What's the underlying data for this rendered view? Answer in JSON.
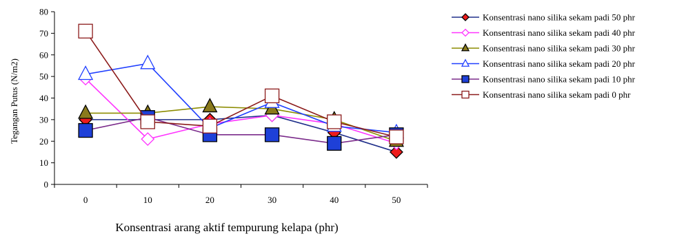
{
  "chart_data": {
    "type": "line",
    "xlabel": "Konsentrasi arang aktif tempurung kelapa (phr)",
    "ylabel": "Tegangan Putus (N/m2)",
    "x": [
      0,
      10,
      20,
      30,
      40,
      50
    ],
    "ylim": [
      0,
      80
    ],
    "yticks": [
      0,
      10,
      20,
      30,
      40,
      50,
      60,
      70,
      80
    ],
    "grid": false,
    "legend": "right",
    "series": [
      {
        "name": "Konsentrasi nano silika sekam padi 50 phr",
        "color": "#1f2f8a",
        "marker": "diamond",
        "marker_fill": "#ee1c1c",
        "values": [
          30,
          30,
          30,
          32,
          24,
          15
        ]
      },
      {
        "name": "Konsentrasi nano silika sekam padi 40 phr",
        "color": "#ff33ff",
        "marker": "diamond",
        "marker_fill": "#ffffff",
        "values": [
          49,
          21,
          28,
          32,
          28,
          19
        ]
      },
      {
        "name": "Konsentrasi nano silika sekam padi 30 phr",
        "color": "#8c8c00",
        "marker": "triangle",
        "marker_fill": "#8a7a1c",
        "values": [
          33,
          33,
          36,
          35,
          30,
          20
        ]
      },
      {
        "name": "Konsentrasi nano silika sekam padi 20 phr",
        "color": "#1f3fff",
        "marker": "triangle",
        "marker_fill": "#ffffff",
        "values": [
          51,
          56,
          26,
          38,
          27,
          24
        ]
      },
      {
        "name": "Konsentrasi nano silika sekam padi 10 phr",
        "color": "#7a2a8a",
        "marker": "square",
        "marker_fill": "#1e40d8",
        "values": [
          25,
          31,
          23,
          23,
          19,
          23
        ]
      },
      {
        "name": "Konsentrasi nano silika sekam padi 0 phr",
        "color": "#8b1a1a",
        "marker": "square",
        "marker_fill": "#ffffff",
        "values": [
          71,
          29,
          27,
          41,
          29,
          22
        ]
      }
    ]
  }
}
